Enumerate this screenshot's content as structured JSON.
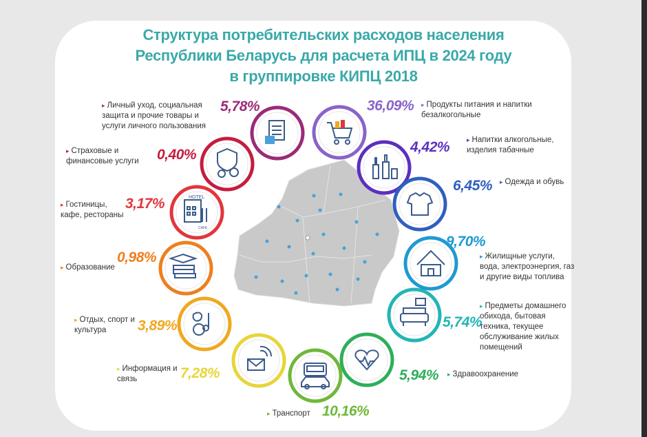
{
  "title": {
    "line1": "Структура потребительских расходов населения",
    "line2": "Республики Беларусь для расчета ИПЦ в 2024 году",
    "line3": "в группировке КИПЦ 2018"
  },
  "colors": {
    "title": "#3aa9a9",
    "label_text": "#333333",
    "map": "#c9c9c9",
    "pin": "#4aa0d8"
  },
  "categories": [
    {
      "key": "food",
      "value": "36,09%",
      "label": "Продукты питания и напитки безалкогольные",
      "color": "#8a63c9",
      "icon": "shopping-cart-icon"
    },
    {
      "key": "alcohol",
      "value": "4,42%",
      "label": "Напитки алкогольные, изделия табачные",
      "color": "#5b2fbf",
      "icon": "bottles-icon"
    },
    {
      "key": "clothing",
      "value": "6,45%",
      "label": "Одежда и обувь",
      "color": "#2f5fbf",
      "icon": "clothing-icon"
    },
    {
      "key": "housing",
      "value": "9,70%",
      "label": "Жилищные услуги, вода, электроэнергия, газ и другие виды топлива",
      "color": "#1f9ad1",
      "icon": "house-icon"
    },
    {
      "key": "household",
      "value": "5,74%",
      "label": "Предметы домашнего обихода, бытовая техника, текущее обслуживание жилых помещений",
      "color": "#22b5b5",
      "icon": "sofa-icon"
    },
    {
      "key": "health",
      "value": "5,94%",
      "label": "Здравоохранение",
      "color": "#2fae5a",
      "icon": "medicine-icon"
    },
    {
      "key": "transport",
      "value": "10,16%",
      "label": "Транспорт",
      "color": "#6fb83a",
      "icon": "transport-icon"
    },
    {
      "key": "communication",
      "value": "7,28%",
      "label": "Информация и связь",
      "color": "#e7d53a",
      "icon": "communication-icon"
    },
    {
      "key": "recreation",
      "value": "3,89%",
      "label": "Отдых, спорт и культура",
      "color": "#f0a81f",
      "icon": "recreation-icon"
    },
    {
      "key": "education",
      "value": "0,98%",
      "label": "Образование",
      "color": "#ee7f1d",
      "icon": "education-icon"
    },
    {
      "key": "restaurants",
      "value": "3,17%",
      "label": "Гостиницы, кафе, рестораны",
      "color": "#e2363c",
      "icon": "hotel-icon"
    },
    {
      "key": "insurance",
      "value": "0,40%",
      "label": "Страховые и финансовые услуги",
      "color": "#c41d3e",
      "icon": "insurance-icon"
    },
    {
      "key": "personal",
      "value": "5,78%",
      "label": "Личный уход, социальная защита и прочие товары и услуги личного пользования",
      "color": "#9c2a78",
      "icon": "personal-care-icon"
    }
  ],
  "bullet": "▸",
  "hotel_sign": "HOTEL",
  "cafe_sign": "CAFE"
}
